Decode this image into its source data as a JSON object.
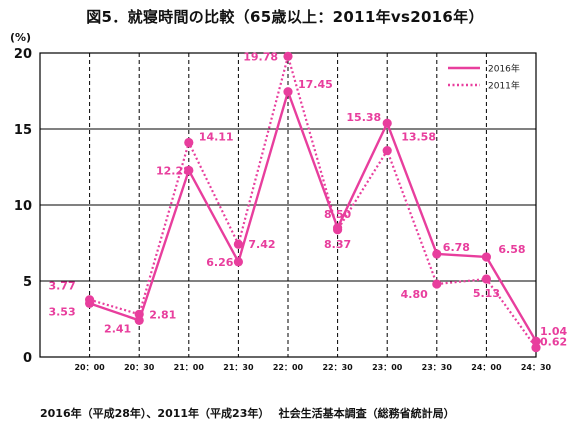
{
  "title": "図5．就寝時間の比較（65歳以上：2011年vs2016年）",
  "unit_label": "(%)",
  "source_note": "2016年（平成28年）、2011年（平成23年）　 社会生活基本調査（総務省統計局）",
  "chart_data": {
    "type": "line",
    "categories": [
      "20：00",
      "20：30",
      "21：00",
      "21：30",
      "22：00",
      "22：30",
      "23：00",
      "23：30",
      "24：00",
      "24：30"
    ],
    "ylim": [
      0,
      20
    ],
    "yticks": [
      0,
      5,
      10,
      15,
      20
    ],
    "grid": "horizontal solid, vertical dashed",
    "legend_position": "top-right",
    "series": [
      {
        "name": "2016年",
        "style": "solid",
        "color": "#e83e9d",
        "values": [
          3.53,
          2.41,
          12.28,
          6.26,
          17.45,
          8.5,
          15.38,
          6.78,
          6.58,
          1.04
        ]
      },
      {
        "name": "2011年",
        "style": "dotted",
        "color": "#e83e9d",
        "values": [
          3.77,
          2.81,
          14.11,
          7.42,
          19.78,
          8.37,
          13.58,
          4.8,
          5.13,
          0.62
        ]
      }
    ],
    "data_labels": [
      "3.77",
      "3.53",
      "2.41",
      "2.81",
      "12.28",
      "14.11",
      "6.26",
      "7.42",
      "19.78",
      "17.45",
      "8.50",
      "8.37",
      "15.38",
      "13.58",
      "6.78",
      "4.80",
      "6.58",
      "5.13",
      "1.04",
      "0.62"
    ]
  }
}
